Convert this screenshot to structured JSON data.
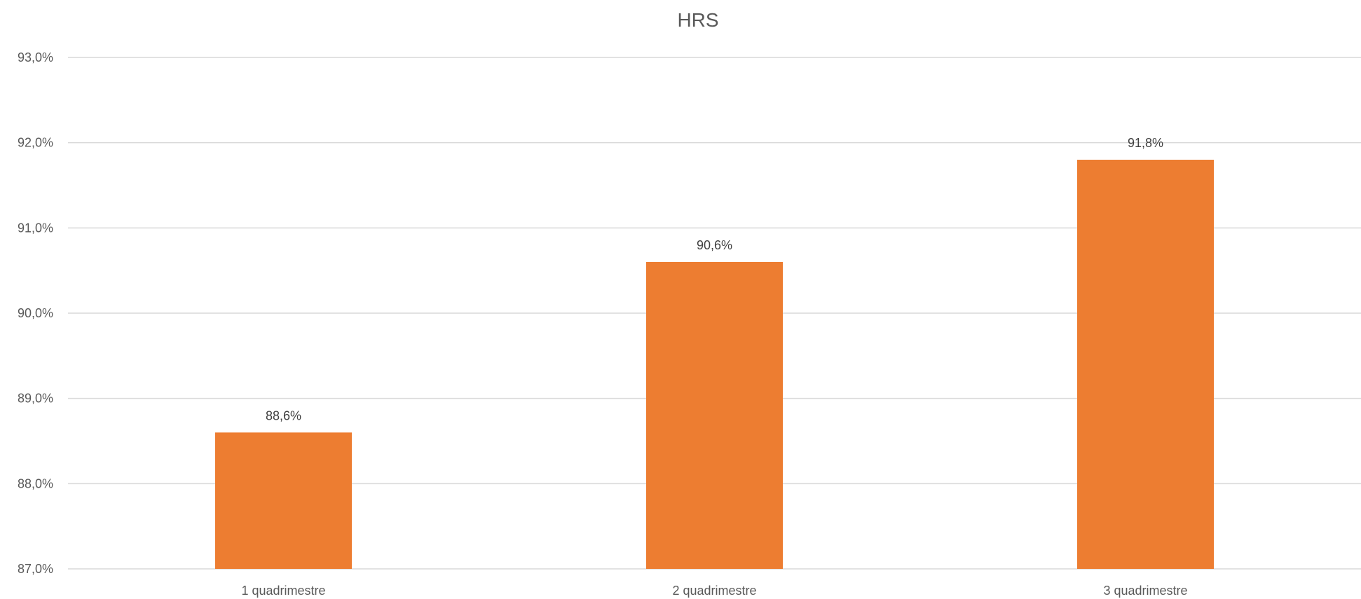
{
  "chart_data": {
    "type": "bar",
    "title": "HRS",
    "xlabel": "",
    "ylabel": "",
    "categories": [
      "1 quadrimestre",
      "2 quadrimestre",
      "3 quadrimestre"
    ],
    "values": [
      88.6,
      90.6,
      91.8
    ],
    "data_labels": [
      "88,6%",
      "90,6%",
      "91,8%"
    ],
    "ylim": [
      87.0,
      93.0
    ],
    "yticks": [
      87.0,
      88.0,
      89.0,
      90.0,
      91.0,
      92.0,
      93.0
    ],
    "ytick_labels": [
      "87,0%",
      "88,0%",
      "89,0%",
      "90,0%",
      "91,0%",
      "92,0%",
      "93,0%"
    ],
    "grid": true,
    "legend": "none",
    "bar_color": "#ED7D31"
  }
}
